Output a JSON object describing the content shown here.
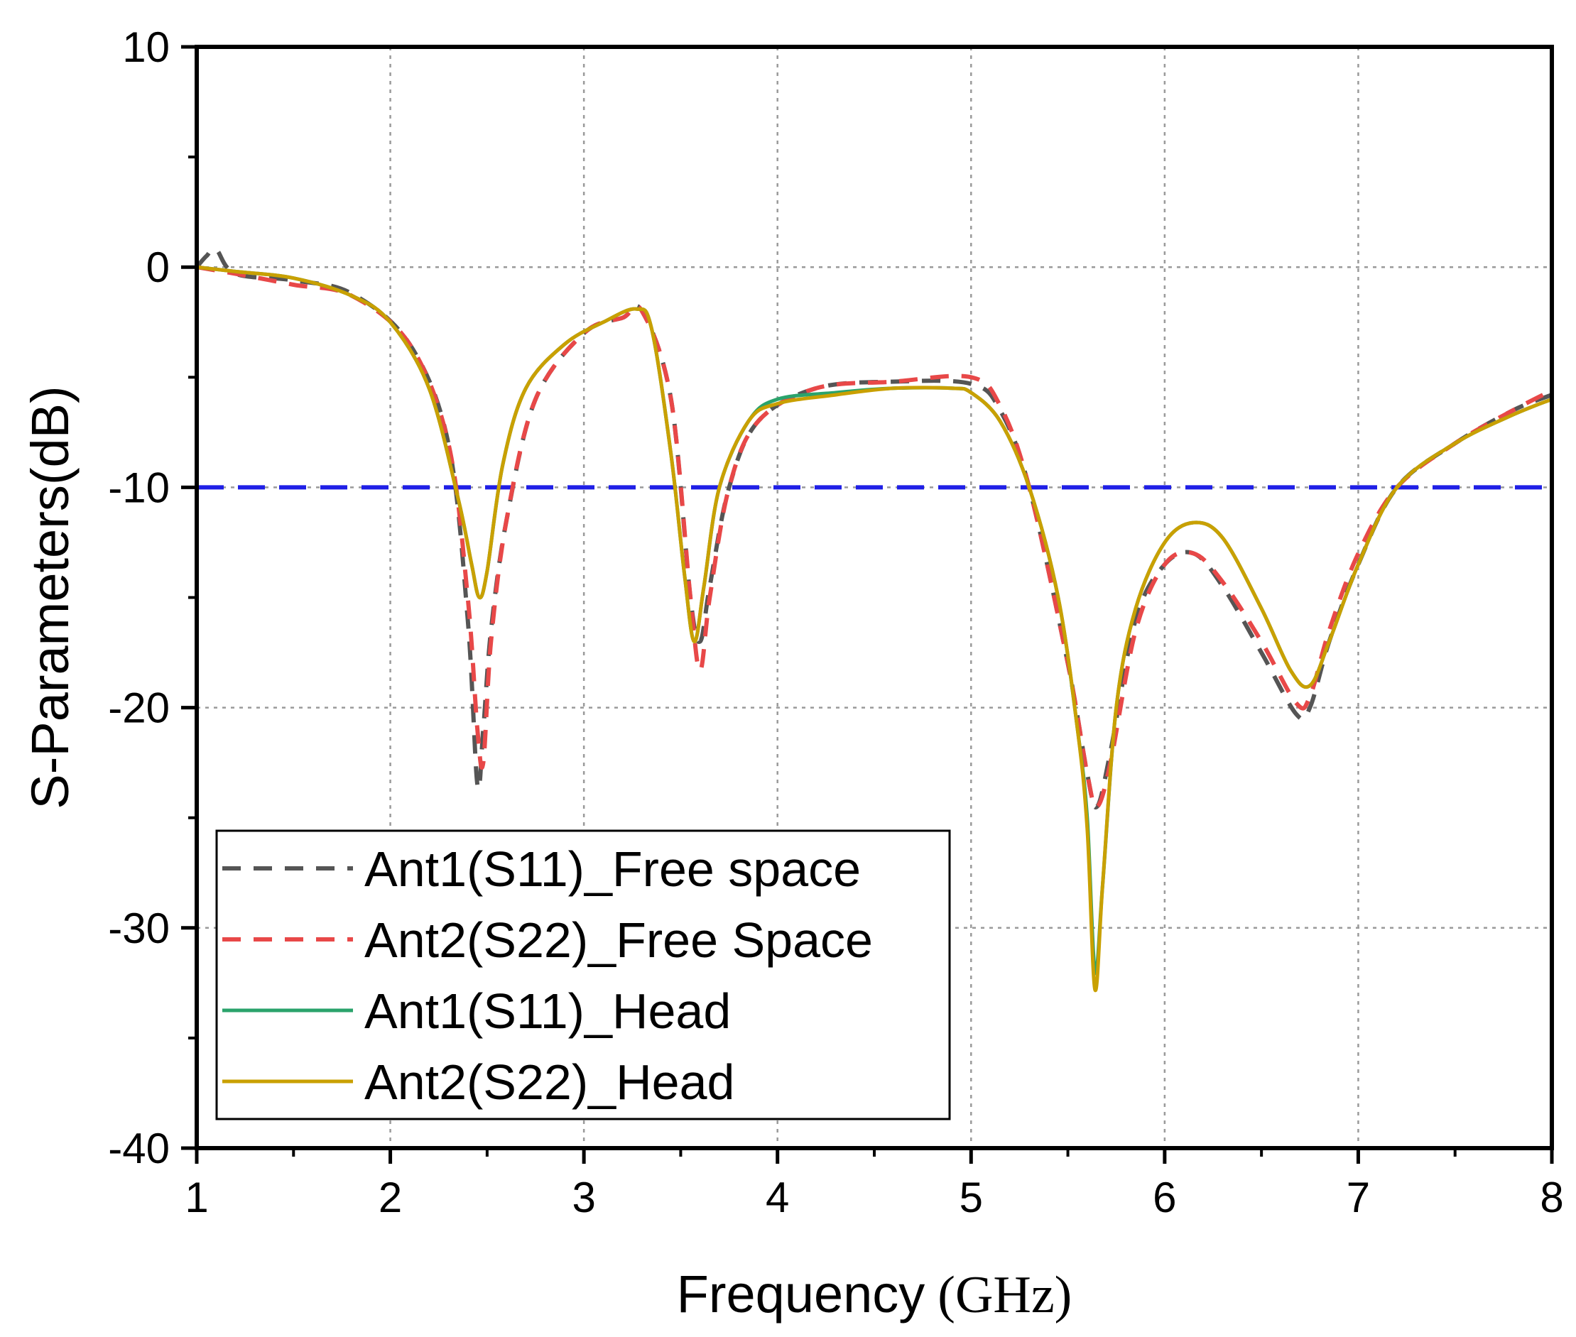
{
  "chart_data": {
    "type": "line",
    "title": "",
    "xlabel": "Frequency",
    "xlabel_unit": "(GHz)",
    "ylabel": "S-Parameters(dB)",
    "xlim": [
      1,
      8
    ],
    "ylim": [
      -40,
      10
    ],
    "x_ticks": [
      "1",
      "2",
      "3",
      "4",
      "5",
      "6",
      "7",
      "8"
    ],
    "y_ticks": [
      "10",
      "0",
      "-10",
      "-20",
      "-30",
      "-40"
    ],
    "grid": true,
    "legend_position": "lower-left",
    "reference_line": {
      "y": -10,
      "color": "#1f1fe6"
    },
    "series": [
      {
        "name": "Ant1(S11)_Free space",
        "color": "#555555",
        "dash": true,
        "x": [
          1.0,
          1.05,
          1.1,
          1.2,
          1.5,
          1.8,
          2.1,
          2.3,
          2.4,
          2.45,
          2.48,
          2.52,
          2.6,
          2.75,
          3.0,
          3.2,
          3.3,
          3.45,
          3.55,
          3.6,
          3.65,
          3.75,
          3.9,
          4.2,
          4.6,
          5.0,
          5.15,
          5.3,
          5.5,
          5.6,
          5.65,
          5.72,
          5.85,
          6.0,
          6.15,
          6.3,
          6.5,
          6.68,
          6.75,
          6.85,
          7.0,
          7.2,
          7.5,
          7.8,
          8.0
        ],
        "values": [
          0.0,
          0.5,
          0.8,
          -0.3,
          -0.6,
          -1.2,
          -3.5,
          -8.0,
          -16.0,
          -23.5,
          -21.0,
          -16.5,
          -11.5,
          -6.0,
          -3.0,
          -2.3,
          -2.0,
          -6.0,
          -15.0,
          -17.0,
          -14.5,
          -10.0,
          -7.0,
          -5.5,
          -5.2,
          -5.3,
          -6.5,
          -10.0,
          -18.0,
          -23.0,
          -24.5,
          -22.0,
          -16.0,
          -13.5,
          -13.0,
          -14.5,
          -17.5,
          -20.3,
          -20.0,
          -17.0,
          -13.5,
          -10.0,
          -8.0,
          -6.5,
          -5.8
        ]
      },
      {
        "name": "Ant2(S22)_Free Space",
        "color": "#e84848",
        "dash": true,
        "x": [
          1.0,
          1.2,
          1.5,
          1.8,
          2.1,
          2.3,
          2.4,
          2.45,
          2.48,
          2.52,
          2.6,
          2.75,
          3.0,
          3.2,
          3.3,
          3.45,
          3.55,
          3.6,
          3.65,
          3.75,
          3.9,
          4.2,
          4.6,
          5.0,
          5.15,
          5.3,
          5.5,
          5.6,
          5.65,
          5.72,
          5.85,
          6.0,
          6.15,
          6.3,
          6.5,
          6.68,
          6.75,
          6.85,
          7.0,
          7.2,
          7.5,
          7.8,
          8.0
        ],
        "values": [
          0.0,
          -0.3,
          -0.8,
          -1.3,
          -3.5,
          -8.0,
          -15.0,
          -21.0,
          -22.5,
          -17.0,
          -11.5,
          -6.0,
          -3.0,
          -2.3,
          -2.0,
          -6.0,
          -15.0,
          -18.3,
          -15.0,
          -10.0,
          -7.0,
          -5.5,
          -5.2,
          -5.0,
          -6.3,
          -10.0,
          -18.0,
          -23.0,
          -24.5,
          -22.5,
          -16.5,
          -13.5,
          -13.0,
          -14.3,
          -17.0,
          -19.8,
          -19.5,
          -16.5,
          -13.0,
          -10.0,
          -8.0,
          -6.5,
          -5.6
        ]
      },
      {
        "name": "Ant1(S11)_Head",
        "color": "#2aa36b",
        "dash": false,
        "x": [
          1.0,
          1.2,
          1.5,
          1.8,
          2.0,
          2.2,
          2.35,
          2.42,
          2.46,
          2.5,
          2.58,
          2.7,
          2.9,
          3.1,
          3.27,
          3.35,
          3.45,
          3.52,
          3.57,
          3.62,
          3.7,
          3.85,
          4.0,
          4.3,
          4.6,
          4.9,
          5.0,
          5.15,
          5.3,
          5.45,
          5.55,
          5.6,
          5.64,
          5.68,
          5.75,
          5.85,
          6.0,
          6.15,
          6.3,
          6.5,
          6.65,
          6.75,
          6.85,
          7.0,
          7.2,
          7.5,
          7.8,
          8.0
        ],
        "values": [
          0.0,
          -0.2,
          -0.5,
          -1.3,
          -2.5,
          -5.5,
          -10.5,
          -13.5,
          -15.0,
          -13.8,
          -9.0,
          -5.5,
          -3.5,
          -2.5,
          -1.9,
          -2.8,
          -8.5,
          -14.0,
          -17.0,
          -14.5,
          -10.0,
          -7.0,
          -6.0,
          -5.7,
          -5.5,
          -5.5,
          -5.7,
          -7.0,
          -10.0,
          -15.0,
          -21.0,
          -25.0,
          -32.0,
          -28.0,
          -20.0,
          -15.5,
          -12.5,
          -11.6,
          -12.3,
          -15.5,
          -18.3,
          -19.0,
          -17.0,
          -13.5,
          -10.0,
          -8.0,
          -6.7,
          -6.0
        ]
      },
      {
        "name": "Ant2(S22)_Head",
        "color": "#c9a000",
        "dash": false,
        "x": [
          1.0,
          1.2,
          1.5,
          1.8,
          2.0,
          2.2,
          2.35,
          2.42,
          2.46,
          2.5,
          2.58,
          2.7,
          2.9,
          3.1,
          3.27,
          3.35,
          3.45,
          3.52,
          3.57,
          3.62,
          3.7,
          3.85,
          4.0,
          4.3,
          4.6,
          4.9,
          5.0,
          5.15,
          5.3,
          5.45,
          5.55,
          5.6,
          5.64,
          5.68,
          5.75,
          5.85,
          6.0,
          6.15,
          6.3,
          6.5,
          6.65,
          6.75,
          6.85,
          7.0,
          7.2,
          7.5,
          7.8,
          8.0
        ],
        "values": [
          0.0,
          -0.2,
          -0.5,
          -1.3,
          -2.5,
          -5.5,
          -10.5,
          -13.5,
          -15.0,
          -13.8,
          -9.0,
          -5.5,
          -3.5,
          -2.5,
          -1.9,
          -2.8,
          -8.5,
          -14.0,
          -17.0,
          -14.5,
          -10.0,
          -7.0,
          -6.2,
          -5.8,
          -5.5,
          -5.5,
          -5.7,
          -7.0,
          -10.0,
          -15.0,
          -21.0,
          -25.5,
          -32.8,
          -28.0,
          -20.0,
          -15.5,
          -12.5,
          -11.6,
          -12.3,
          -15.5,
          -18.3,
          -19.0,
          -17.0,
          -13.5,
          -10.0,
          -8.0,
          -6.7,
          -6.0
        ]
      }
    ]
  }
}
